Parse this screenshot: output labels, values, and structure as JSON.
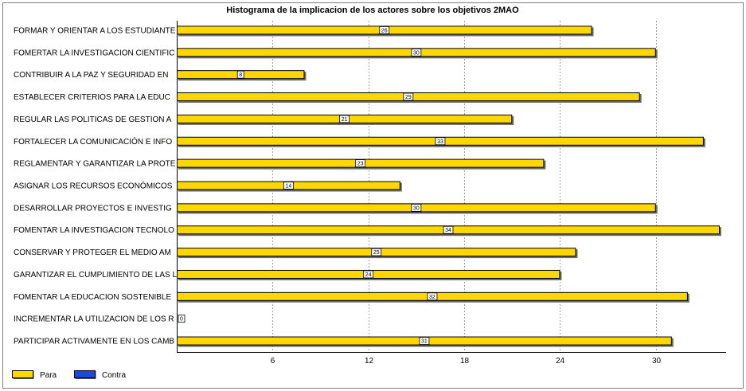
{
  "chart_data": {
    "type": "bar",
    "orientation": "horizontal",
    "title": "Histograma de la implicacion de los actores sobre los objetivos 2MAO",
    "categories": [
      "FORMAR Y ORIENTAR A LOS ESTUDIANTE",
      "FOMERTAR  LA INVESTIGACION CIENTIFIC",
      "CONTRIBUIR A LA PAZ Y SEGURIDAD EN",
      "ESTABLECER  CRITERIOS  PARA LA EDUC",
      "REGULAR LAS POLITICAS DE GESTION A",
      "FORTALECER  LA COMUNICACIÓN  E INFO",
      "REGLAMENTAR  Y  GARANTIZAR  LA PROTE",
      "ASIGNAR LOS RECURSOS ECONÓMICOS",
      "DESARROLLAR  PROYECTOS  E INVESTIG",
      "FOMENTAR  LA INVESTIGACION TECNOLO",
      "CONSERVAR  Y PROTEGER  EL MEDIO AM",
      "GARANTIZAR  EL CUMPLIMIENTO  DE LAS L",
      "FOMENTAR  LA EDUCACION SOSTENIBLE",
      "INCREMENTAR  LA UTILIZACION DE LOS R",
      "PARTICIPAR ACTIVAMENTE  EN  LOS CAMB"
    ],
    "series": [
      {
        "name": "Para",
        "color": "#ffd700",
        "values": [
          26,
          30,
          8,
          29,
          21,
          33,
          23,
          14,
          30,
          34,
          25,
          24,
          32,
          0,
          31
        ]
      },
      {
        "name": "Contra",
        "color": "#1e46e0",
        "values": [
          0,
          0,
          0,
          0,
          0,
          0,
          0,
          0,
          0,
          0,
          0,
          0,
          0,
          0,
          0
        ]
      }
    ],
    "xticks": [
      6,
      12,
      18,
      24,
      30
    ],
    "xlim": [
      0,
      34.3
    ],
    "grid": "vertical dashed",
    "legend_position": "bottom-left"
  }
}
